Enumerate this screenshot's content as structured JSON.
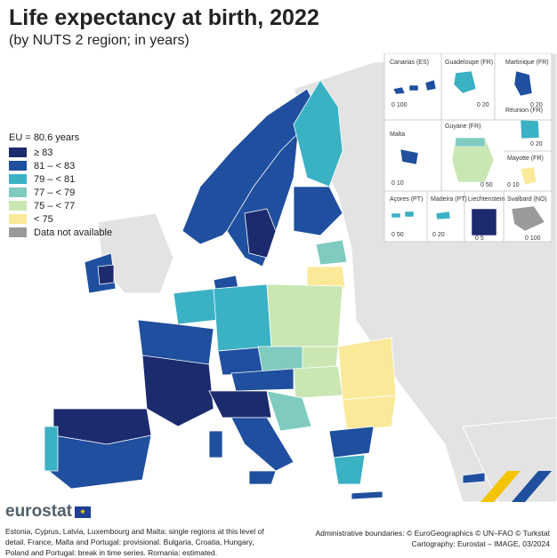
{
  "title": "Life expectancy at birth, 2022",
  "subtitle": "(by NUTS 2 region; in years)",
  "legend": {
    "eu_value": "EU = 80.6 years",
    "classes": [
      {
        "label": "≥ 83",
        "color": "#1c2a6e"
      },
      {
        "label": "81 – < 83",
        "color": "#1f4f9e"
      },
      {
        "label": "79 – < 81",
        "color": "#3bb1c4"
      },
      {
        "label": "77 – < 79",
        "color": "#7fcbc0"
      },
      {
        "label": "75 – < 77",
        "color": "#c9e6b3"
      },
      {
        "label": "< 75",
        "color": "#fbe99a"
      },
      {
        "label": "Data not available",
        "color": "#9a9a9a"
      }
    ]
  },
  "insets": [
    {
      "label": "Canarias (ES)",
      "scale": "0 100"
    },
    {
      "label": "Guadeloupe (FR)",
      "scale": "0 20"
    },
    {
      "label": "Martinique (FR)",
      "scale": "0 20"
    },
    {
      "label": "Réunion (FR)",
      "scale": "0 20"
    },
    {
      "label": "Malta",
      "scale": "0 10"
    },
    {
      "label": "Guyane (FR)",
      "scale": "0 50"
    },
    {
      "label": "Mayotte (FR)",
      "scale": "0 10"
    },
    {
      "label": "Açores (PT)",
      "scale": "0 50"
    },
    {
      "label": "Madeira (PT)",
      "scale": "0 20"
    },
    {
      "label": "Liechtenstein",
      "scale": "0 5"
    },
    {
      "label": "Svalbard (NO)",
      "scale": "0 100"
    }
  ],
  "logo": {
    "text": "eurostat",
    "flag": "★"
  },
  "footnote": "Estonia, Cyprus, Latvia, Luxembourg and Malta: single regions at this level of detail. France, Malta and Portugal: provisional. Bulgaria, Croatia, Hungary, Poland and Portugal: break in time series. Romania: estimated.",
  "credits": {
    "line1": "Administrative boundaries: © EuroGeographics © UN–FAO © Turkstat",
    "line2": "Cartography: Eurostat – IMAGE, 03/2024"
  },
  "colors": {
    "sea": "#ffffff",
    "non_eu": "#e3e3e3",
    "border": "#ffffff"
  }
}
